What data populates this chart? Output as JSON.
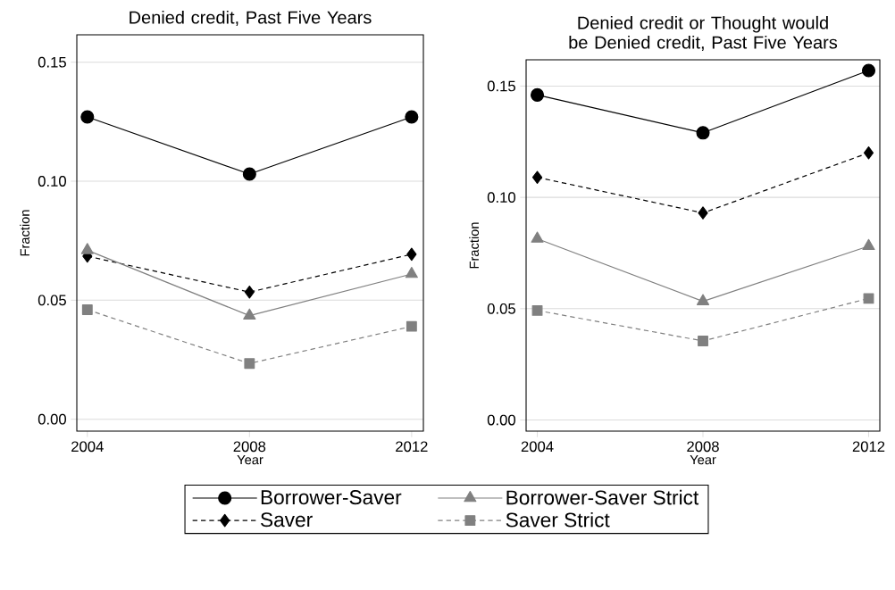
{
  "chart_data": [
    {
      "type": "line",
      "title": "Denied credit, Past Five Years",
      "xlabel": "Year",
      "ylabel": "Fraction",
      "x": [
        2004,
        2008,
        2012
      ],
      "xlim": [
        2003.74,
        2012.29
      ],
      "xticks": [
        2004,
        2008,
        2012
      ],
      "ylim": [
        -0.005,
        0.1615
      ],
      "yticks": [
        {
          "value": 0,
          "label": "0.00"
        },
        {
          "value": 0.05,
          "label": "0.05"
        },
        {
          "value": 0.1,
          "label": "0.10"
        },
        {
          "value": 0.15,
          "label": "0.15"
        }
      ],
      "grid": "y",
      "legend": "bottom",
      "series": [
        {
          "name": "Borrower-Saver",
          "color": "#000000",
          "marker": "circle",
          "line_style": "solid",
          "values": [
            0.127,
            0.103,
            0.127
          ]
        },
        {
          "name": "Saver",
          "color": "#000000",
          "marker": "diamond",
          "line_style": "dashed",
          "values": [
            0.0685,
            0.0534,
            0.0693
          ]
        },
        {
          "name": "Borrower-Saver Strict",
          "color": "#808080",
          "marker": "triangle",
          "line_style": "solid",
          "values": [
            0.071,
            0.0435,
            0.061
          ]
        },
        {
          "name": "Saver Strict",
          "color": "#808080",
          "marker": "square",
          "line_style": "dashed",
          "values": [
            0.046,
            0.0234,
            0.039
          ]
        }
      ]
    },
    {
      "type": "line",
      "title": "Denied credit or Thought would be Denied credit, Past Five Years",
      "xlabel": "Year",
      "ylabel": "Fraction",
      "x": [
        2004,
        2008,
        2012
      ],
      "xlim": [
        2003.73,
        2012.27
      ],
      "xticks": [
        2004,
        2008,
        2012
      ],
      "ylim": [
        -0.005,
        0.1618
      ],
      "yticks": [
        {
          "value": 0,
          "label": "0.00"
        },
        {
          "value": 0.05,
          "label": "0.05"
        },
        {
          "value": 0.1,
          "label": "0.10"
        },
        {
          "value": 0.15,
          "label": "0.15"
        }
      ],
      "grid": "y",
      "series": [
        {
          "color": "#000000",
          "marker": "circle",
          "line_style": "solid",
          "values": [
            0.146,
            0.129,
            0.157
          ]
        },
        {
          "color": "#000000",
          "marker": "diamond",
          "line_style": "dashed",
          "values": [
            0.109,
            0.093,
            0.12
          ]
        },
        {
          "color": "#808080",
          "marker": "triangle",
          "line_style": "solid",
          "values": [
            0.0814,
            0.0533,
            0.0781
          ]
        },
        {
          "color": "#808080",
          "marker": "square",
          "line_style": "dashed",
          "values": [
            0.0492,
            0.0355,
            0.0546
          ]
        }
      ]
    }
  ]
}
